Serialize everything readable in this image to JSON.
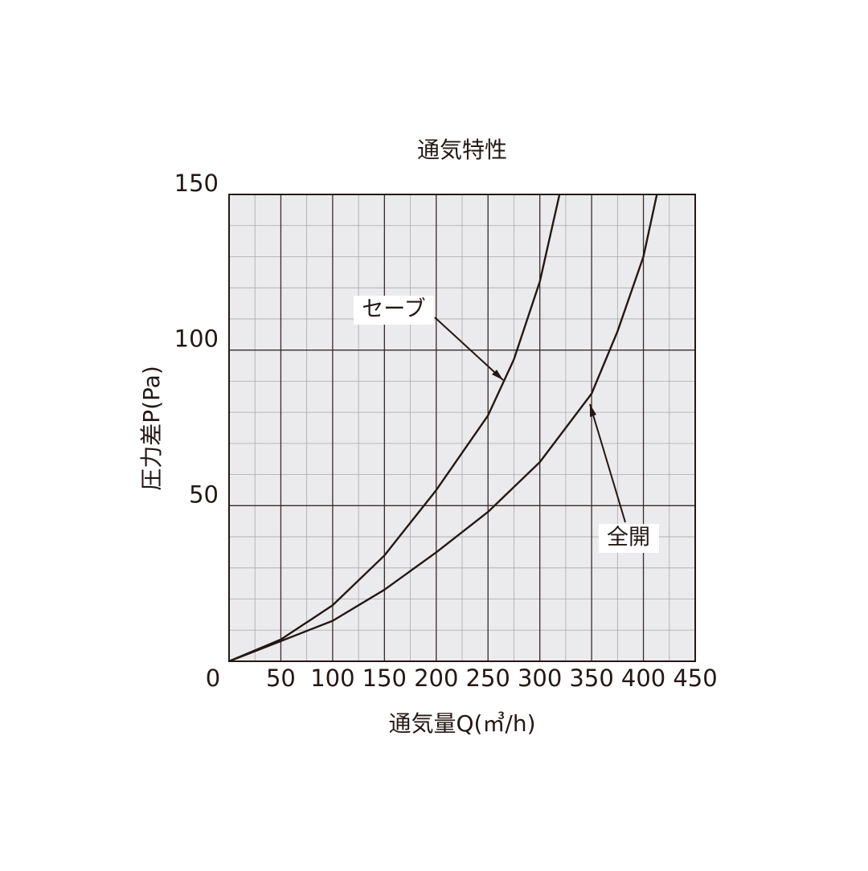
{
  "chart_data": {
    "type": "line",
    "title": "通気特性",
    "x_label": "通気量Q(㎥/h)",
    "y_label": "圧力差P(Pa)",
    "xlim": [
      0,
      450
    ],
    "xticks": [
      0,
      50,
      100,
      150,
      200,
      250,
      300,
      350,
      400,
      450
    ],
    "ylim": [
      0,
      150
    ],
    "yticks": [
      50,
      100,
      150
    ],
    "grid": true,
    "minor_grid": {
      "x": 25,
      "y": 10
    },
    "series": [
      {
        "name": "セーブ",
        "color": "#231815",
        "x": [
          0,
          50,
          100,
          150,
          200,
          250,
          275,
          300,
          319
        ],
        "values": [
          0,
          7,
          18,
          34,
          55,
          79,
          97,
          122,
          150
        ]
      },
      {
        "name": "全開",
        "color": "#231815",
        "x": [
          0,
          50,
          100,
          150,
          200,
          250,
          300,
          350,
          375,
          400,
          413
        ],
        "values": [
          0,
          6.5,
          13,
          23,
          35,
          48,
          64,
          86,
          106,
          130,
          150
        ]
      }
    ]
  }
}
